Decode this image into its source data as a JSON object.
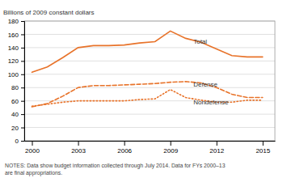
{
  "chart_data": {
    "type": "line",
    "y_label": "Billions of 2009 constant dollars",
    "notes": [
      "NOTES: Data show budget information collected through July 2014. Data for FYs 2000–13",
      "are final appropriations."
    ],
    "x": [
      2000,
      2001,
      2002,
      2003,
      2004,
      2005,
      2006,
      2007,
      2008,
      2009,
      2010,
      2011,
      2012,
      2013,
      2014,
      2015
    ],
    "series": [
      {
        "color": "#e8732a",
        "line_style": "solid",
        "values": [
          103,
          111,
          125,
          140,
          143,
          143,
          144,
          147,
          149,
          165,
          154,
          148,
          138,
          128,
          126,
          126
        ]
      },
      {
        "color": "#e8732a",
        "line_style": "dashed",
        "values": [
          51,
          56,
          67,
          80,
          83,
          83,
          84,
          85,
          86,
          88,
          89,
          87,
          80,
          70,
          65,
          65
        ]
      },
      {
        "color": "#e8732a",
        "line_style": "dotted",
        "values": [
          52,
          55,
          58,
          60,
          60,
          60,
          60,
          62,
          63,
          77,
          65,
          61,
          58,
          58,
          61,
          61
        ]
      }
    ],
    "annotations": [
      {
        "text": "Total",
        "x": 2010.5,
        "y": 148
      },
      {
        "text": "Defense",
        "x": 2010.5,
        "y": 84
      },
      {
        "text": "Nondefense",
        "x": 2010.5,
        "y": 57
      }
    ],
    "xlim": [
      1999.5,
      2015.8
    ],
    "xticks": [
      2000,
      2003,
      2006,
      2009,
      2012,
      2015
    ],
    "ylim": [
      0,
      180
    ],
    "yticks": [
      0,
      20,
      40,
      60,
      80,
      100,
      120,
      140,
      160,
      180
    ],
    "grid": "y"
  }
}
